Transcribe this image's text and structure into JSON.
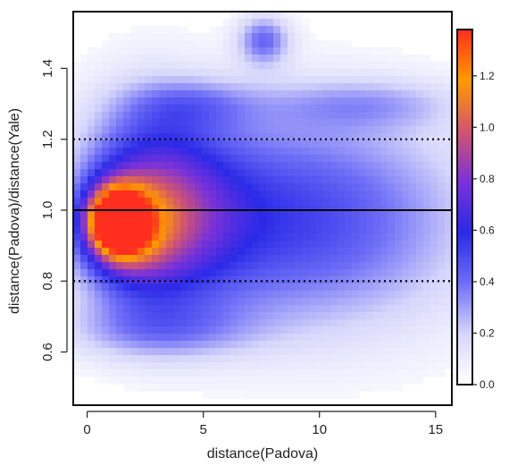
{
  "chart_data": {
    "type": "heatmap",
    "title": "",
    "xlabel": "distance(Padova)",
    "ylabel": "distance(Padova)/distance(Yale)",
    "xlim": [
      -0.6,
      15.7
    ],
    "ylim": [
      0.45,
      1.56
    ],
    "x_ticks": [
      0,
      5,
      10,
      15
    ],
    "x_tick_labels": [
      "0",
      "5",
      "10",
      "15"
    ],
    "y_ticks": [
      0.6,
      0.8,
      1.0,
      1.2,
      1.4
    ],
    "y_tick_labels": [
      "0.6",
      "0.8",
      "1.0",
      "1.2",
      "1.4"
    ],
    "reference_lines": [
      {
        "y": 1.0,
        "style": "solid",
        "color": "#000000"
      },
      {
        "y": 0.8,
        "style": "dotted",
        "color": "#000000"
      },
      {
        "y": 1.2,
        "style": "dotted",
        "color": "#000000"
      }
    ],
    "colorbar": {
      "range": [
        0.0,
        1.38
      ],
      "ticks": [
        0.0,
        0.2,
        0.4,
        0.6,
        0.8,
        1.0,
        1.2
      ],
      "tick_labels": [
        "0.0",
        "0.2",
        "0.4",
        "0.6",
        "0.8",
        "1.0",
        "1.2"
      ],
      "colors": [
        "#ffffff",
        "#d6d6fb",
        "#6e6ef7",
        "#2a2ae8",
        "#7a32d8",
        "#d2556e",
        "#ff9a00",
        "#ff2e1e"
      ]
    },
    "density_clusters": [
      {
        "x": 1.2,
        "y": 0.97,
        "sx": 0.85,
        "sy": 0.065,
        "w": 1.2
      },
      {
        "x": 1.8,
        "y": 0.94,
        "sx": 1.2,
        "sy": 0.09,
        "w": 0.4
      },
      {
        "x": 3.2,
        "y": 0.98,
        "sx": 2.3,
        "sy": 0.17,
        "w": 0.42
      },
      {
        "x": 6.0,
        "y": 0.98,
        "sx": 4.5,
        "sy": 0.21,
        "w": 0.33
      },
      {
        "x": 11.5,
        "y": 0.97,
        "sx": 4.5,
        "sy": 0.23,
        "w": 0.3
      },
      {
        "x": 2.5,
        "y": 1.05,
        "sx": 2.0,
        "sy": 0.22,
        "w": 0.25
      },
      {
        "x": 7.6,
        "y": 1.48,
        "sx": 0.8,
        "sy": 0.05,
        "w": 0.38
      },
      {
        "x": 3.0,
        "y": 0.66,
        "sx": 3.0,
        "sy": 0.06,
        "w": 0.22
      },
      {
        "x": 12.0,
        "y": 1.3,
        "sx": 3.0,
        "sy": 0.05,
        "w": 0.2
      },
      {
        "x": 4.5,
        "y": 1.3,
        "sx": 2.0,
        "sy": 0.05,
        "w": 0.2
      }
    ]
  }
}
